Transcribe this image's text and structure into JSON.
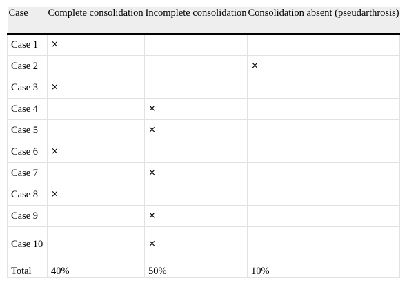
{
  "table": {
    "headers": [
      "Case",
      "Complete consolidation",
      "Incomplete consolidation",
      "Consolidation absent (pseudarthrosis)"
    ],
    "rows": [
      [
        "Case 1",
        "×",
        "",
        ""
      ],
      [
        "Case 2",
        "",
        "",
        "×"
      ],
      [
        "Case 3",
        "×",
        "",
        ""
      ],
      [
        "Case 4",
        "",
        "×",
        ""
      ],
      [
        "Case 5",
        "",
        "×",
        ""
      ],
      [
        "Case 6",
        "×",
        "",
        ""
      ],
      [
        "Case 7",
        "",
        "×",
        ""
      ],
      [
        "Case 8",
        "×",
        "",
        ""
      ],
      [
        "Case 9",
        "",
        "×",
        ""
      ],
      [
        "Case 10",
        "",
        "×",
        ""
      ]
    ],
    "total": [
      "Total",
      "40%",
      "50%",
      "10%"
    ]
  }
}
